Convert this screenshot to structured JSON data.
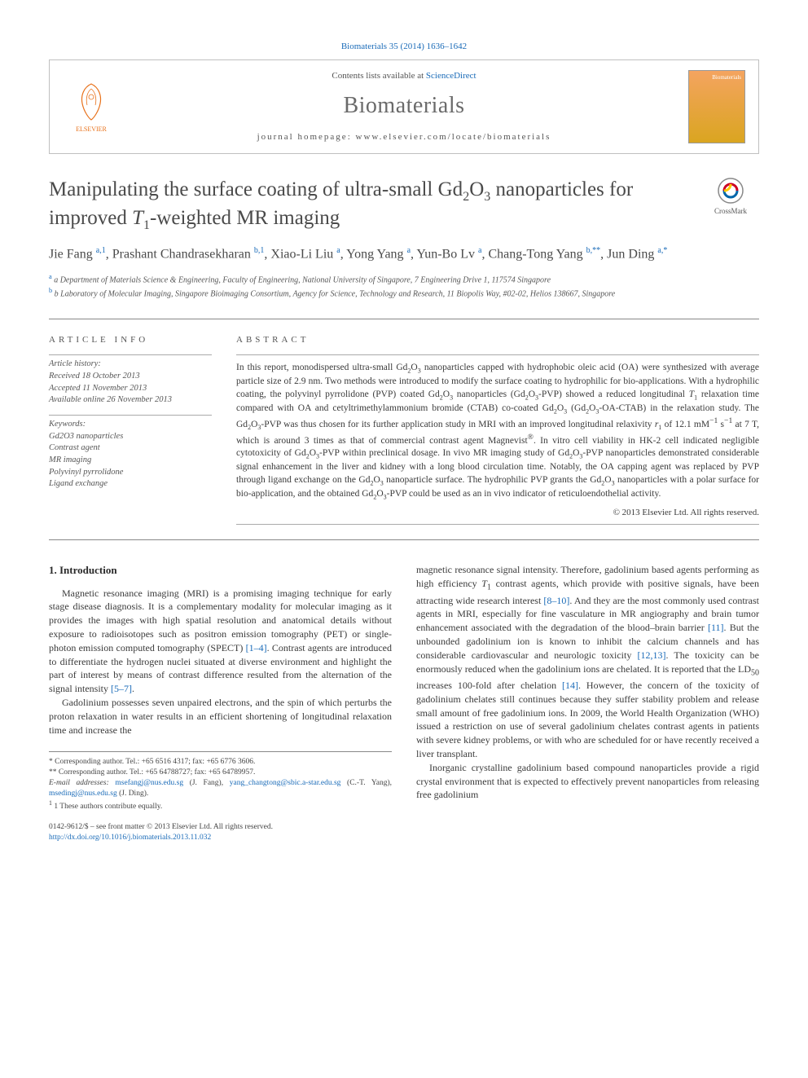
{
  "citation": "Biomaterials 35 (2014) 1636–1642",
  "header": {
    "contents_prefix": "Contents lists available at ",
    "contents_link": "ScienceDirect",
    "journal": "Biomaterials",
    "homepage_prefix": "journal homepage: ",
    "homepage": "www.elsevier.com/locate/biomaterials",
    "publisher": "ELSEVIER",
    "cover_label": "Biomaterials"
  },
  "title_html": "Manipulating the surface coating of ultra-small Gd<sub>2</sub>O<sub>3</sub> nanoparticles for improved <em>T</em><sub>1</sub>-weighted MR imaging",
  "crossmark": "CrossMark",
  "authors_html": "Jie Fang <sup>a,1</sup>, Prashant Chandrasekharan <sup>b,1</sup>, Xiao-Li Liu <sup>a</sup>, Yong Yang <sup>a</sup>, Yun-Bo Lv <sup>a</sup>, Chang-Tong Yang <sup>b,**</sup>, Jun Ding <sup>a,*</sup>",
  "affiliations": [
    "a Department of Materials Science & Engineering, Faculty of Engineering, National University of Singapore, 7 Engineering Drive 1, 117574 Singapore",
    "b Laboratory of Molecular Imaging, Singapore Bioimaging Consortium, Agency for Science, Technology and Research, 11 Biopolis Way, #02-02, Helios 138667, Singapore"
  ],
  "article_info": {
    "label": "ARTICLE INFO",
    "history_hdr": "Article history:",
    "received": "Received 18 October 2013",
    "accepted": "Accepted 11 November 2013",
    "online": "Available online 26 November 2013",
    "keywords_hdr": "Keywords:",
    "keywords": [
      "Gd2O3 nanoparticles",
      "Contrast agent",
      "MR imaging",
      "Polyvinyl pyrrolidone",
      "Ligand exchange"
    ]
  },
  "abstract": {
    "label": "ABSTRACT",
    "text_html": "In this report, monodispersed ultra-small Gd<sub>2</sub>O<sub>3</sub> nanoparticles capped with hydrophobic oleic acid (OA) were synthesized with average particle size of 2.9 nm. Two methods were introduced to modify the surface coating to hydrophilic for bio-applications. With a hydrophilic coating, the polyvinyl pyrrolidone (PVP) coated Gd<sub>2</sub>O<sub>3</sub> nanoparticles (Gd<sub>2</sub>O<sub>3</sub>-PVP) showed a reduced longitudinal <em>T</em><sub>1</sub> relaxation time compared with OA and cetyltrimethylammonium bromide (CTAB) co-coated Gd<sub>2</sub>O<sub>3</sub> (Gd<sub>2</sub>O<sub>3</sub>-OA-CTAB) in the relaxation study. The Gd<sub>2</sub>O<sub>3</sub>-PVP was thus chosen for its further application study in MRI with an improved longitudinal relaxivity <em>r</em><sub>1</sub> of 12.1 mM<sup>−1</sup> s<sup>−1</sup> at 7 T, which is around 3 times as that of commercial contrast agent Magnevist<sup>®</sup>. In vitro cell viability in HK-2 cell indicated negligible cytotoxicity of Gd<sub>2</sub>O<sub>3</sub>-PVP within preclinical dosage. In vivo MR imaging study of Gd<sub>2</sub>O<sub>3</sub>-PVP nanoparticles demonstrated considerable signal enhancement in the liver and kidney with a long blood circulation time. Notably, the OA capping agent was replaced by PVP through ligand exchange on the Gd<sub>2</sub>O<sub>3</sub> nanoparticle surface. The hydrophilic PVP grants the Gd<sub>2</sub>O<sub>3</sub> nanoparticles with a polar surface for bio-application, and the obtained Gd<sub>2</sub>O<sub>3</sub>-PVP could be used as an in vivo indicator of reticuloendothelial activity.",
    "copyright": "© 2013 Elsevier Ltd. All rights reserved."
  },
  "intro": {
    "heading": "1. Introduction",
    "p1_html": "Magnetic resonance imaging (MRI) is a promising imaging technique for early stage disease diagnosis. It is a complementary modality for molecular imaging as it provides the images with high spatial resolution and anatomical details without exposure to radioisotopes such as positron emission tomography (PET) or single-photon emission computed tomography (SPECT) <span class=\"ref-link\">[1–4]</span>. Contrast agents are introduced to differentiate the hydrogen nuclei situated at diverse environment and highlight the part of interest by means of contrast difference resulted from the alternation of the signal intensity <span class=\"ref-link\">[5–7]</span>.",
    "p2_html": "Gadolinium possesses seven unpaired electrons, and the spin of which perturbs the proton relaxation in water results in an efficient shortening of longitudinal relaxation time and increase the",
    "p3_html": "magnetic resonance signal intensity. Therefore, gadolinium based agents performing as high efficiency <em>T</em><sub>1</sub> contrast agents, which provide with positive signals, have been attracting wide research interest <span class=\"ref-link\">[8–10]</span>. And they are the most commonly used contrast agents in MRI, especially for fine vasculature in MR angiography and brain tumor enhancement associated with the degradation of the blood–brain barrier <span class=\"ref-link\">[11]</span>. But the unbounded gadolinium ion is known to inhibit the calcium channels and has considerable cardiovascular and neurologic toxicity <span class=\"ref-link\">[12,13]</span>. The toxicity can be enormously reduced when the gadolinium ions are chelated. It is reported that the LD<sub>50</sub> increases 100-fold after chelation <span class=\"ref-link\">[14]</span>. However, the concern of the toxicity of gadolinium chelates still continues because they suffer stability problem and release small amount of free gadolinium ions. In 2009, the World Health Organization (WHO) issued a restriction on use of several gadolinium chelates contrast agents in patients with severe kidney problems, or with who are scheduled for or have recently received a liver transplant.",
    "p4_html": "Inorganic crystalline gadolinium based compound nanoparticles provide a rigid crystal environment that is expected to effectively prevent nanoparticles from releasing free gadolinium"
  },
  "footnotes": {
    "corr1": "* Corresponding author. Tel.: +65 6516 4317; fax: +65 6776 3606.",
    "corr2": "** Corresponding author. Tel.: +65 64788727; fax: +65 64789957.",
    "emails_label": "E-mail addresses: ",
    "email1": "msefangj@nus.edu.sg",
    "email1_who": " (J. Fang), ",
    "email2": "yang_changtong@sbic.a-star.edu.sg",
    "email2_who": " (C.-T. Yang), ",
    "email3": "msedingj@nus.edu.sg",
    "email3_who": " (J. Ding).",
    "equal": "1 These authors contribute equally."
  },
  "footer": {
    "front_matter": "0142-9612/$ – see front matter © 2013 Elsevier Ltd. All rights reserved.",
    "doi_url": "http://dx.doi.org/10.1016/j.biomaterials.2013.11.032"
  },
  "colors": {
    "link": "#1a6bb8",
    "text": "#3a3a3a",
    "muted": "#555555",
    "rule": "#888888",
    "elsevier_orange": "#e8711a"
  }
}
